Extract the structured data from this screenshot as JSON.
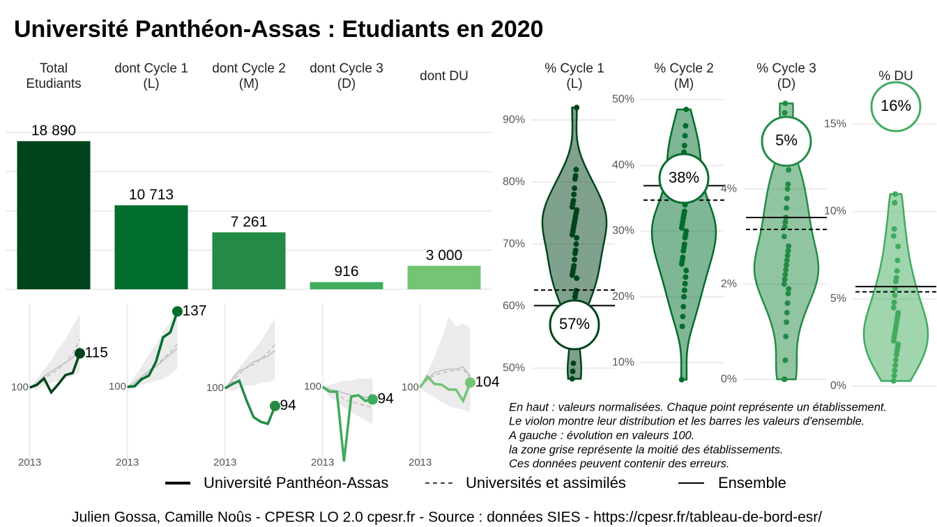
{
  "title": "Université Panthéon-Assas  :  Etudiants en 2020",
  "chart_data": [
    {
      "type": "bar",
      "categories": [
        "Total\nEtudiants",
        "dont Cycle 1\n(L)",
        "dont Cycle 2\n(M)",
        "dont Cycle 3\n(D)",
        "dont DU"
      ],
      "values": [
        18890,
        10713,
        7261,
        916,
        3000
      ],
      "value_labels": [
        "18 890",
        "10 713",
        "7 261",
        "916",
        "3 000"
      ],
      "colors": [
        "#00441b",
        "#006d2c",
        "#238b45",
        "#41ab5d",
        "#74c476"
      ],
      "ylim": [
        0,
        20000
      ],
      "yticks": [
        0,
        5000,
        10000,
        15000,
        20000
      ],
      "grid": true
    },
    {
      "type": "line",
      "x": [
        2013,
        2014,
        2015,
        2016,
        2017,
        2018,
        2019,
        2020
      ],
      "xlim": [
        2010.3,
        2022
      ],
      "xticks": [
        2013
      ],
      "ylim": [
        63.6,
        137
      ],
      "yticks": [
        100
      ],
      "band_low": [
        100,
        99,
        101,
        102,
        103,
        104,
        105,
        107
      ],
      "band_high": [
        100,
        104,
        108,
        112,
        117,
        121,
        127,
        132
      ],
      "series": [
        {
          "color": "#00441b",
          "line_style": "solid",
          "values": [
            100,
            101.2,
            104,
            97.9,
            101.5,
            105.5,
            106.4,
            115
          ]
        },
        {
          "color": "#bdbdbd",
          "line_style": "dashed",
          "values": [
            100,
            101,
            104,
            106,
            108,
            111,
            115,
            121
          ]
        },
        {
          "color": "#bdbdbd",
          "line_style": "solid",
          "values": [
            100,
            102,
            105,
            107,
            109,
            111,
            113,
            118
          ]
        }
      ]
    },
    {
      "type": "line",
      "x": [
        2013,
        2014,
        2015,
        2016,
        2017,
        2018,
        2019,
        2020
      ],
      "xlim": [
        2010.3,
        2022
      ],
      "xticks": [
        2013
      ],
      "ylim": [
        59,
        141
      ],
      "yticks": [
        100
      ],
      "band_low": [
        100,
        99,
        101,
        102,
        103,
        104,
        106,
        109
      ],
      "band_high": [
        100,
        105,
        110,
        116,
        121,
        127,
        132,
        138
      ],
      "series": [
        {
          "color": "#006d2c",
          "line_style": "solid",
          "values": [
            100,
            100.3,
            103.8,
            105.5,
            112.3,
            124.3,
            126.7,
            137
          ]
        },
        {
          "color": "#bdbdbd",
          "line_style": "dashed",
          "values": [
            100,
            101,
            104,
            107,
            110,
            114,
            117,
            121
          ]
        },
        {
          "color": "#bdbdbd",
          "line_style": "solid",
          "values": [
            100,
            102,
            105,
            108,
            110,
            113,
            116,
            119
          ]
        }
      ]
    },
    {
      "type": "line",
      "x": [
        2013,
        2014,
        2015,
        2016,
        2017,
        2018,
        2019,
        2020
      ],
      "xlim": [
        2010.3,
        2022
      ],
      "xticks": [
        2013
      ],
      "ylim": [
        72,
        129
      ],
      "yticks": [
        100
      ],
      "band_low": [
        100,
        99,
        100,
        101,
        101,
        102,
        102,
        103
      ],
      "band_high": [
        100,
        104,
        107,
        110,
        113,
        116,
        120,
        124
      ],
      "series": [
        {
          "color": "#238b45",
          "line_style": "solid",
          "values": [
            100,
            101.4,
            102.6,
            96,
            90.2,
            88.6,
            87.9,
            94
          ]
        },
        {
          "color": "#bdbdbd",
          "line_style": "dashed",
          "values": [
            100,
            102,
            105,
            107,
            108,
            110,
            112,
            115
          ]
        },
        {
          "color": "#bdbdbd",
          "line_style": "solid",
          "values": [
            100,
            103,
            106,
            107,
            109,
            110,
            111,
            113
          ]
        }
      ]
    },
    {
      "type": "line",
      "x": [
        2013,
        2014,
        2015,
        2016,
        2017,
        2018,
        2019,
        2020
      ],
      "xlim": [
        2010.3,
        2022
      ],
      "xticks": [
        2013
      ],
      "ylim": [
        60,
        140
      ],
      "yticks": [
        100
      ],
      "band_low": [
        100,
        95,
        93,
        90,
        88,
        86,
        84,
        82
      ],
      "band_high": [
        100,
        101,
        102,
        103,
        103,
        104,
        104,
        104
      ],
      "series": [
        {
          "color": "#41ab5d",
          "line_style": "solid",
          "values": [
            100,
            97.7,
            97.7,
            64.3,
            95.3,
            96,
            93.3,
            94
          ]
        },
        {
          "color": "#bdbdbd",
          "line_style": "dashed",
          "values": [
            100,
            98,
            97,
            94,
            93,
            92,
            91,
            90
          ]
        },
        {
          "color": "#bdbdbd",
          "line_style": "solid",
          "values": [
            100,
            99,
            98,
            97,
            96,
            96,
            95,
            95
          ]
        }
      ]
    },
    {
      "type": "line",
      "x": [
        2013,
        2014,
        2015,
        2016,
        2017,
        2018,
        2019,
        2020
      ],
      "xlim": [
        2010.3,
        2022
      ],
      "xticks": [
        2013
      ],
      "ylim": [
        32,
        169
      ],
      "yticks": [
        100
      ],
      "band_low": [
        100,
        95,
        92,
        88,
        85,
        83,
        82,
        80
      ],
      "band_high": [
        100,
        112,
        125,
        140,
        158,
        150,
        152,
        149
      ],
      "series": [
        {
          "color": "#74c476",
          "line_style": "solid",
          "values": [
            100,
            109,
            102.9,
            102.3,
            98.3,
            98.3,
            89.1,
            104
          ]
        },
        {
          "color": "#bdbdbd",
          "line_style": "dashed",
          "values": [
            100,
            106,
            110,
            112,
            113,
            114,
            115,
            108
          ]
        },
        {
          "color": "#bdbdbd",
          "line_style": "solid",
          "values": [
            100,
            107,
            112,
            114,
            115,
            115,
            117,
            109
          ]
        }
      ]
    },
    {
      "type": "violin",
      "title": "% Cycle 1\n(L)",
      "color": "#00441b",
      "values": [
        48.3,
        49.5,
        50.8,
        57.5,
        60.2,
        61.5,
        62,
        62.5,
        64.5,
        65,
        65.5,
        66,
        66.5,
        67.5,
        68.5,
        69,
        70,
        71,
        71.5,
        72,
        72.5,
        73,
        73.5,
        74,
        74.5,
        75,
        75.5,
        76,
        76.5,
        77,
        78,
        79,
        80.5,
        81,
        82,
        92
      ],
      "value": 57,
      "value_label": "57%",
      "universites": 62.6,
      "ensemble": 60.1,
      "ylim": [
        47.0,
        93.6
      ],
      "yticks": [
        {
          "value": 50,
          "label": "50%"
        },
        {
          "value": 60,
          "label": "60%"
        },
        {
          "value": 70,
          "label": "70%"
        },
        {
          "value": 80,
          "label": "80%"
        },
        {
          "value": 90,
          "label": "90%"
        }
      ]
    },
    {
      "type": "violin",
      "title": "% Cycle 2\n(M)",
      "color": "#006d2c",
      "values": [
        7.4,
        15.5,
        17,
        18.5,
        20,
        21,
        22,
        23,
        24,
        25,
        25.5,
        26,
        27,
        27.5,
        28,
        29,
        29.5,
        30,
        30.5,
        31,
        31.5,
        32,
        32.5,
        33,
        34,
        35,
        36,
        37,
        39,
        40,
        41,
        42,
        43,
        44.5,
        46,
        48.5
      ],
      "value": 38,
      "value_label": "38%",
      "universites": 34.7,
      "ensemble": 36.9,
      "ylim": [
        6.3,
        50.3
      ],
      "yticks": [
        {
          "value": 10,
          "label": "10%"
        },
        {
          "value": 20,
          "label": "20%"
        },
        {
          "value": 30,
          "label": "30%"
        },
        {
          "value": 40,
          "label": "40%"
        },
        {
          "value": 50,
          "label": "50%"
        }
      ]
    },
    {
      "type": "violin",
      "title": "% Cycle 3\n(D)",
      "color": "#238b45",
      "values": [
        0,
        0,
        0.4,
        0.9,
        1.2,
        1.4,
        1.6,
        1.8,
        1.9,
        2.0,
        2.1,
        2.2,
        2.3,
        2.4,
        2.5,
        2.6,
        2.7,
        2.8,
        3.0,
        3.2,
        3.3,
        3.4,
        3.6,
        3.8,
        4.0,
        4.1,
        4.4,
        4.6,
        5.6,
        5.8
      ],
      "value": 5,
      "value_label": "5%",
      "universites": 3.15,
      "ensemble": 3.4,
      "ylim": [
        -0.16,
        5.92
      ],
      "yticks": [
        {
          "value": 0,
          "label": "0%"
        },
        {
          "value": 2,
          "label": "2%"
        },
        {
          "value": 4,
          "label": "4%"
        }
      ]
    },
    {
      "type": "violin",
      "title": "% DU",
      "color": "#41ab5d",
      "values": [
        0.3,
        0.6,
        0.9,
        1.2,
        1.5,
        1.8,
        2.0,
        2.2,
        2.4,
        2.6,
        2.8,
        3.0,
        3.2,
        3.4,
        3.6,
        3.8,
        4.0,
        4.2,
        4.5,
        4.8,
        5.2,
        5.6,
        6.0,
        6.2,
        6.6,
        7.2,
        8.0,
        8.6,
        9.0,
        10.5,
        11.0
      ],
      "value": 16,
      "value_label": "16%",
      "universites": 5.4,
      "ensemble": 5.7,
      "ylim": [
        -0.04,
        16.52
      ],
      "yticks": [
        {
          "value": 0,
          "label": "0%"
        },
        {
          "value": 5,
          "label": "5%"
        },
        {
          "value": 10,
          "label": "10%"
        },
        {
          "value": 15,
          "label": "15%"
        }
      ]
    }
  ],
  "legend": [
    "Université Panthéon-Assas",
    "Universités et assimilés",
    "Ensemble"
  ],
  "notes": [
    "En haut : valeurs normalisées. Chaque point représente un établissement.",
    "Le violon montre leur distribution et les barres les valeurs d'ensemble.",
    "A gauche : évolution en valeurs 100.",
    "la zone grise représente la moitié des établissements.",
    "Ces données peuvent contenir des erreurs."
  ],
  "caption": "Julien Gossa, Camille Noûs - CPESR LO 2.0 cpesr.fr - Source : données SIES - https://cpesr.fr/tableau-de-bord-esr/"
}
